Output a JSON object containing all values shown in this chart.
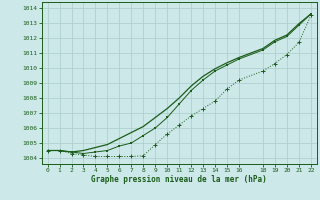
{
  "title": "Graphe pression niveau de la mer (hPa)",
  "background_color": "#cce8e8",
  "grid_color": "#b0d0d0",
  "line_color": "#1a5c1a",
  "xlim": [
    -0.5,
    22.5
  ],
  "ylim": [
    1003.6,
    1014.4
  ],
  "yticks": [
    1004,
    1005,
    1006,
    1007,
    1008,
    1009,
    1010,
    1011,
    1012,
    1013,
    1014
  ],
  "xticks": [
    0,
    1,
    2,
    3,
    4,
    5,
    6,
    7,
    8,
    9,
    10,
    11,
    12,
    13,
    14,
    15,
    16,
    18,
    19,
    20,
    21,
    22
  ],
  "line_marker_x": [
    0,
    1,
    2,
    3,
    4,
    5,
    6,
    7,
    8,
    9,
    10,
    11,
    12,
    13,
    14,
    15,
    16,
    18,
    19,
    20,
    21,
    22
  ],
  "line_marker_y": [
    1004.5,
    1004.5,
    1004.3,
    1004.2,
    1004.1,
    1004.1,
    1004.1,
    1004.1,
    1004.15,
    1004.9,
    1005.6,
    1006.2,
    1006.8,
    1007.3,
    1007.8,
    1008.6,
    1009.2,
    1009.8,
    1010.3,
    1010.9,
    1011.7,
    1013.5
  ],
  "line_smooth_x": [
    0,
    1,
    2,
    3,
    4,
    5,
    6,
    7,
    8,
    9,
    10,
    11,
    12,
    13,
    14,
    15,
    16,
    18,
    19,
    20,
    21,
    22
  ],
  "line_smooth_y": [
    1004.5,
    1004.5,
    1004.4,
    1004.5,
    1004.7,
    1004.9,
    1005.3,
    1005.7,
    1006.1,
    1006.7,
    1007.3,
    1008.0,
    1008.8,
    1009.45,
    1009.95,
    1010.35,
    1010.7,
    1011.3,
    1011.85,
    1012.2,
    1012.95,
    1013.6
  ],
  "line_dots_x": [
    0,
    1,
    2,
    3,
    4,
    5,
    6,
    7,
    8,
    9,
    10,
    11,
    12,
    13,
    14,
    15,
    16,
    18,
    19,
    20,
    21,
    22
  ],
  "line_dots_y": [
    1004.5,
    1004.5,
    1004.4,
    1004.3,
    1004.4,
    1004.5,
    1004.8,
    1005.0,
    1005.5,
    1006.0,
    1006.7,
    1007.6,
    1008.5,
    1009.2,
    1009.8,
    1010.2,
    1010.6,
    1011.2,
    1011.75,
    1012.1,
    1012.85,
    1013.6
  ]
}
